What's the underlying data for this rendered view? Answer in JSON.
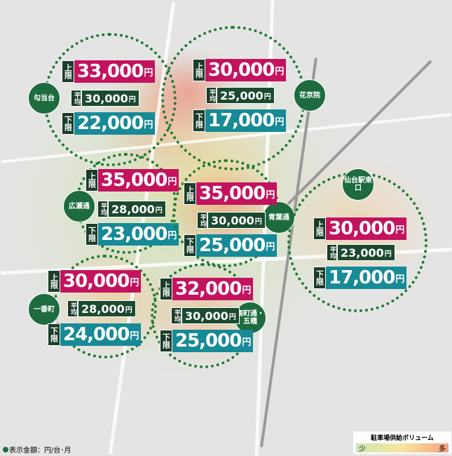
{
  "areas": [
    {
      "name": "勾当台",
      "upper_tag": "上限",
      "upper": "33,000",
      "avg_tag": "平均",
      "avg": "30,000",
      "lower_tag": "下限",
      "lower": "22,000"
    },
    {
      "name": "花京院",
      "upper_tag": "上限",
      "upper": "30,000",
      "avg_tag": "平均",
      "avg": "25,000",
      "lower_tag": "下限",
      "lower": "17,000"
    },
    {
      "name": "広瀬通",
      "upper_tag": "上限",
      "upper": "35,000",
      "avg_tag": "平均",
      "avg": "28,000",
      "lower_tag": "下限",
      "lower": "23,000"
    },
    {
      "name": "青葉通",
      "upper_tag": "上限",
      "upper": "35,000",
      "avg_tag": "平均",
      "avg": "30,000",
      "lower_tag": "下限",
      "lower": "25,000"
    },
    {
      "name": "仙台駅東口",
      "upper_tag": "上限",
      "upper": "30,000",
      "avg_tag": "平均",
      "avg": "23,000",
      "lower_tag": "下限",
      "lower": "17,000"
    },
    {
      "name": "一番町",
      "upper_tag": "上限",
      "upper": "30,000",
      "avg_tag": "平均",
      "avg": "28,000",
      "lower_tag": "下限",
      "lower": "24,000"
    },
    {
      "name": "南町通・五橋",
      "upper_tag": "上限",
      "upper": "32,000",
      "avg_tag": "平均",
      "avg": "30,000",
      "lower_tag": "下限",
      "lower": "25,000"
    }
  ],
  "currency": "円",
  "legend": {
    "title": "駐車場供給ボリューム",
    "low": "少",
    "high": "多",
    "colors": [
      "#cde6b4",
      "#f8e6a0",
      "#f5a080"
    ]
  },
  "note": "表示金額：円/台･月",
  "colors": {
    "upper": "#c3135e",
    "lower": "#168a96",
    "avg": "#1b4a30",
    "circle": "#1f7a35"
  }
}
